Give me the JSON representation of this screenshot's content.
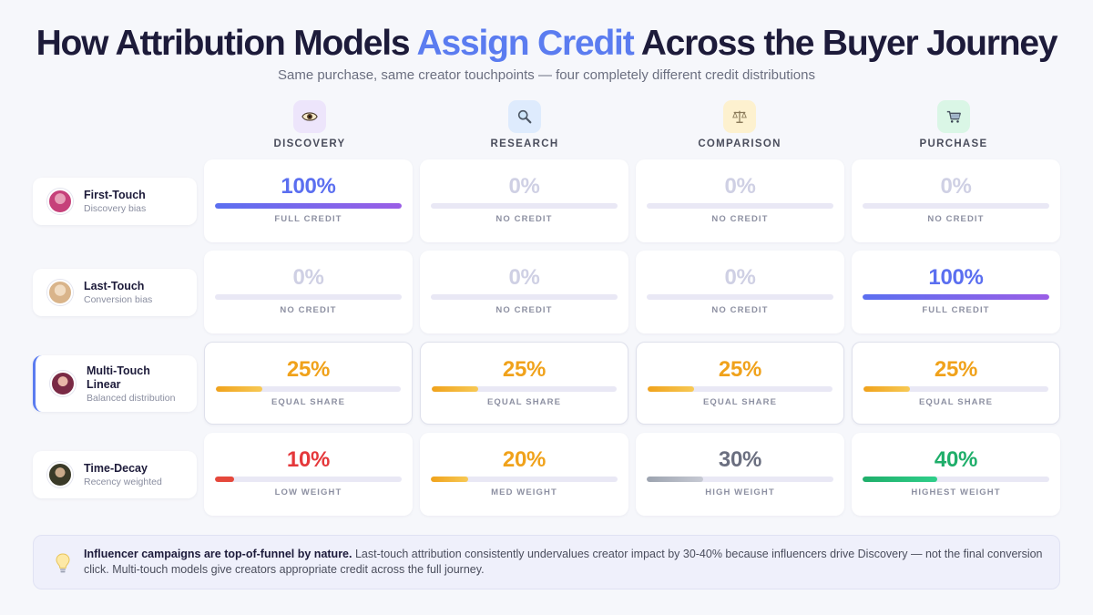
{
  "title": {
    "part1": "How Attribution Models ",
    "accent": "Assign Credit",
    "part2": " Across the Buyer Journey",
    "accent_color": "#5b7cf0"
  },
  "subtitle": "Same purchase, same creator touchpoints — four completely different credit distributions",
  "stages": [
    {
      "label": "DISCOVERY",
      "icon": "eye-icon",
      "icon_bg": "#ede5fb"
    },
    {
      "label": "RESEARCH",
      "icon": "magnifier-icon",
      "icon_bg": "#deebfd"
    },
    {
      "label": "COMPARISON",
      "icon": "scales-icon",
      "icon_bg": "#fdf1cf"
    },
    {
      "label": "PURCHASE",
      "icon": "cart-icon",
      "icon_bg": "#daf6e6"
    }
  ],
  "models": [
    {
      "name": "First-Touch",
      "sub": "Discovery bias",
      "avatar_color": "#c6417a",
      "active": false
    },
    {
      "name": "Last-Touch",
      "sub": "Conversion bias",
      "avatar_color": "#d9b48a",
      "active": false
    },
    {
      "name": "Multi-Touch Linear",
      "sub": "Balanced distribution",
      "avatar_color": "#7a2a45",
      "active": true
    },
    {
      "name": "Time-Decay",
      "sub": "Recency weighted",
      "avatar_color": "#3a3a28",
      "active": false
    }
  ],
  "chart_data": {
    "type": "table",
    "columns": [
      "DISCOVERY",
      "RESEARCH",
      "COMPARISON",
      "PURCHASE"
    ],
    "rows": [
      {
        "model": "First-Touch",
        "cells": [
          {
            "value": 100,
            "text": "100%",
            "label": "FULL CREDIT",
            "color": "#5b6ff0",
            "fill": "gradient"
          },
          {
            "value": 0,
            "text": "0%",
            "label": "NO CREDIT",
            "color": "#cfd0e4",
            "fill": "none"
          },
          {
            "value": 0,
            "text": "0%",
            "label": "NO CREDIT",
            "color": "#cfd0e4",
            "fill": "none"
          },
          {
            "value": 0,
            "text": "0%",
            "label": "NO CREDIT",
            "color": "#cfd0e4",
            "fill": "none"
          }
        ]
      },
      {
        "model": "Last-Touch",
        "cells": [
          {
            "value": 0,
            "text": "0%",
            "label": "NO CREDIT",
            "color": "#cfd0e4",
            "fill": "none"
          },
          {
            "value": 0,
            "text": "0%",
            "label": "NO CREDIT",
            "color": "#cfd0e4",
            "fill": "none"
          },
          {
            "value": 0,
            "text": "0%",
            "label": "NO CREDIT",
            "color": "#cfd0e4",
            "fill": "none"
          },
          {
            "value": 100,
            "text": "100%",
            "label": "FULL CREDIT",
            "color": "#5b6ff0",
            "fill": "gradient"
          }
        ]
      },
      {
        "model": "Multi-Touch Linear",
        "cells": [
          {
            "value": 25,
            "text": "25%",
            "label": "EQUAL SHARE",
            "color": "#f0a21b",
            "fill": "amber"
          },
          {
            "value": 25,
            "text": "25%",
            "label": "EQUAL SHARE",
            "color": "#f0a21b",
            "fill": "amber"
          },
          {
            "value": 25,
            "text": "25%",
            "label": "EQUAL SHARE",
            "color": "#f0a21b",
            "fill": "amber"
          },
          {
            "value": 25,
            "text": "25%",
            "label": "EQUAL SHARE",
            "color": "#f0a21b",
            "fill": "amber"
          }
        ]
      },
      {
        "model": "Time-Decay",
        "cells": [
          {
            "value": 10,
            "text": "10%",
            "label": "LOW WEIGHT",
            "color": "#e5383b",
            "fill": "red"
          },
          {
            "value": 20,
            "text": "20%",
            "label": "MED WEIGHT",
            "color": "#f0a21b",
            "fill": "amber"
          },
          {
            "value": 30,
            "text": "30%",
            "label": "HIGH WEIGHT",
            "color": "#6b6f80",
            "fill": "gray"
          },
          {
            "value": 40,
            "text": "40%",
            "label": "HIGHEST WEIGHT",
            "color": "#1fae6a",
            "fill": "green"
          }
        ]
      }
    ]
  },
  "insight": {
    "icon": "lightbulb-icon",
    "bold": "Influencer campaigns are top-of-funnel by nature.",
    "text": " Last-touch attribution consistently undervalues creator impact by 30-40% because influencers drive Discovery — not the final conversion click. Multi-touch models give creators appropriate credit across the full journey."
  }
}
